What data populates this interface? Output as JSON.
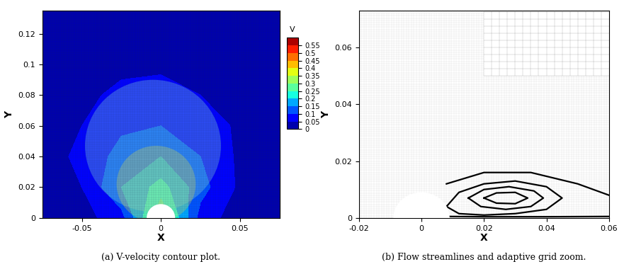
{
  "chart_data": [
    {
      "type": "contour",
      "caption": "(a) V-velocity contour plot.",
      "x_label": "X",
      "y_label": "Y",
      "xlim": [
        -0.075,
        0.075
      ],
      "xticks": [
        -0.05,
        0,
        0.05
      ],
      "ylim": [
        0,
        0.135
      ],
      "yticks": [
        0,
        0.02,
        0.04,
        0.06,
        0.08,
        0.1,
        0.12
      ],
      "cell_x": [
        -0.075,
        -0.05,
        -0.025,
        0,
        0.025,
        0.05,
        0.075
      ],
      "cell_y": [
        0,
        0.02,
        0.04,
        0.06,
        0.08,
        0.1,
        0.12,
        0.135
      ],
      "v_cells": [
        [
          0.01,
          0.03,
          0.08,
          0.3,
          0.08,
          0.02,
          0.01
        ],
        [
          0.02,
          0.05,
          0.15,
          0.22,
          0.12,
          0.04,
          0.01
        ],
        [
          0.03,
          0.06,
          0.12,
          0.15,
          0.1,
          0.04,
          0.02
        ],
        [
          0.03,
          0.05,
          0.09,
          0.1,
          0.08,
          0.04,
          0.02
        ],
        [
          0.02,
          0.04,
          0.06,
          0.07,
          0.05,
          0.03,
          0.02
        ],
        [
          0.02,
          0.03,
          0.04,
          0.04,
          0.04,
          0.03,
          0.01
        ],
        [
          0.01,
          0.02,
          0.03,
          0.03,
          0.02,
          0.02,
          0.01
        ],
        [
          0.01,
          0.01,
          0.02,
          0.02,
          0.02,
          0.01,
          0.01
        ]
      ],
      "colorbar": {
        "title": "V",
        "levels": [
          0,
          0.05,
          0.1,
          0.15,
          0.2,
          0.25,
          0.3,
          0.35,
          0.4,
          0.45,
          0.5,
          0.55,
          0.6
        ],
        "ticks": [
          0,
          0.05,
          0.1,
          0.15,
          0.2,
          0.25,
          0.3,
          0.35,
          0.4,
          0.45,
          0.5,
          0.55
        ]
      },
      "cylinder": {
        "x": 0,
        "y": 0,
        "radius": 0.009
      },
      "refinement_regions": [
        {
          "x": -0.005,
          "y": 0.047,
          "radius": 0.043,
          "color": "#7fd8d8"
        },
        {
          "x": -0.003,
          "y": 0.022,
          "radius": 0.025,
          "color": "#c8d860"
        }
      ]
    },
    {
      "type": "streamlines",
      "caption": "(b) Flow streamlines and adaptive grid zoom.",
      "x_label": "X",
      "y_label": "Y",
      "xlim": [
        -0.02,
        0.06
      ],
      "xticks": [
        -0.02,
        0,
        0.02,
        0.04,
        0.06
      ],
      "ylim": [
        0,
        0.073
      ],
      "yticks": [
        0,
        0.02,
        0.04,
        0.06
      ],
      "cylinder": {
        "x": 0,
        "y": 0,
        "radius": 0.009
      },
      "color": "#000000",
      "series": [
        {
          "x": [
            0.008,
            0.012,
            0.02,
            0.03,
            0.04,
            0.045,
            0.04,
            0.03,
            0.02,
            0.012,
            0.008
          ],
          "y": [
            0.004,
            0.009,
            0.012,
            0.013,
            0.011,
            0.007,
            0.003,
            0.0015,
            0.001,
            0.0015,
            0.004
          ]
        },
        {
          "x": [
            0.015,
            0.02,
            0.028,
            0.036,
            0.039,
            0.035,
            0.027,
            0.019,
            0.015
          ],
          "y": [
            0.007,
            0.01,
            0.011,
            0.0095,
            0.007,
            0.004,
            0.003,
            0.004,
            0.007
          ]
        },
        {
          "x": [
            0.02,
            0.024,
            0.03,
            0.034,
            0.03,
            0.024,
            0.02
          ],
          "y": [
            0.007,
            0.0088,
            0.009,
            0.007,
            0.005,
            0.0052,
            0.007
          ]
        },
        {
          "x": [
            0.008,
            0.02,
            0.035,
            0.05,
            0.06
          ],
          "y": [
            0.012,
            0.016,
            0.016,
            0.012,
            0.008
          ]
        },
        {
          "x": [
            0.009,
            0.02,
            0.04,
            0.06
          ],
          "y": [
            0.0005,
            0.0004,
            0.0004,
            0.0005
          ]
        }
      ]
    }
  ]
}
